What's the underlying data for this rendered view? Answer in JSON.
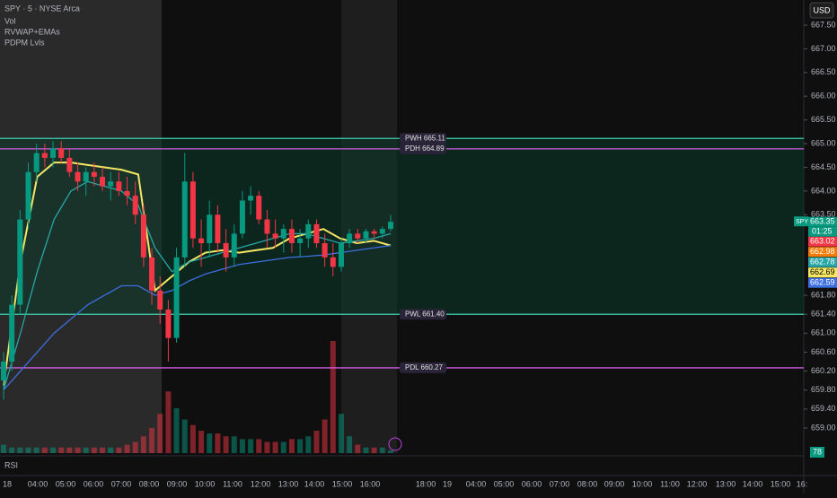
{
  "header": {
    "symbol": "SPY · 5 · NYSE Arca",
    "indicators": [
      "Vol",
      "RVWAP+EMAs",
      "PDPM Lvls"
    ],
    "currency": "USD",
    "rsi_label": "RSI",
    "rsi_value": 78
  },
  "chart_data": {
    "type": "candlestick",
    "ylim": [
      658.47,
      668.03
    ],
    "yticks": [
      {
        "value": 667.5,
        "label": "667.50"
      },
      {
        "value": 667,
        "label": "667.00"
      },
      {
        "value": 666.5,
        "label": "666.50"
      },
      {
        "value": 666,
        "label": "666.00"
      },
      {
        "value": 665.5,
        "label": "665.50"
      },
      {
        "value": 665,
        "label": "665.00"
      },
      {
        "value": 664.5,
        "label": "664.50"
      },
      {
        "value": 664,
        "label": "664.00"
      },
      {
        "value": 663.5,
        "label": "663.50"
      },
      {
        "value": 661.8,
        "label": "661.80"
      },
      {
        "value": 661.4,
        "label": "661.40"
      },
      {
        "value": 661,
        "label": "661.00"
      },
      {
        "value": 660.6,
        "label": "660.60"
      },
      {
        "value": 660.2,
        "label": "660.20"
      },
      {
        "value": 659.8,
        "label": "659.80"
      },
      {
        "value": 659.4,
        "label": "659.40"
      },
      {
        "value": 659,
        "label": "659.00"
      }
    ],
    "time_labels": [
      "18",
      "04:00",
      "05:00",
      "06:00",
      "07:00",
      "08:00",
      "09:00",
      "10:00",
      "11:00",
      "12:00",
      "13:00",
      "14:00",
      "15:00",
      "16:00",
      "18:00",
      "19",
      "04:00",
      "05:00",
      "06:00",
      "07:00",
      "08:00",
      "09:00",
      "10:00",
      "11:00",
      "12:00",
      "13:00",
      "14:00",
      "15:00",
      "16:"
    ],
    "open": [
      660.0,
      660.4,
      661.6,
      663.4,
      664.4,
      664.8,
      664.7,
      664.9,
      664.7,
      664.4,
      664.2,
      664.4,
      664.3,
      664.1,
      664.2,
      664.0,
      663.9,
      663.5,
      662.6,
      661.9,
      661.5,
      660.9,
      662.6,
      664.2,
      663.0,
      662.9,
      663.5,
      662.9,
      662.6,
      663.1,
      663.8,
      663.9,
      663.4,
      663.1,
      663.0,
      663.2,
      662.9,
      663.0,
      663.3,
      662.9,
      662.6,
      662.4,
      662.9,
      663.1,
      663.0,
      663.15,
      663.1,
      663.2
    ],
    "high": [
      660.6,
      661.8,
      663.6,
      664.6,
      665.0,
      665.0,
      665.05,
      665.05,
      664.9,
      664.6,
      664.5,
      664.6,
      664.5,
      664.4,
      664.4,
      664.3,
      664.2,
      663.7,
      662.8,
      662.2,
      661.7,
      662.8,
      664.8,
      664.4,
      663.4,
      663.8,
      663.7,
      663.2,
      663.3,
      664.0,
      664.1,
      664.0,
      663.6,
      663.4,
      663.3,
      663.4,
      663.2,
      663.4,
      663.4,
      663.1,
      662.9,
      663.0,
      663.2,
      663.2,
      663.2,
      663.2,
      663.25,
      663.5
    ],
    "low": [
      659.6,
      660.2,
      661.4,
      663.2,
      664.2,
      664.5,
      664.5,
      664.6,
      664.3,
      664.0,
      663.9,
      664.1,
      664.0,
      663.8,
      663.9,
      663.7,
      663.3,
      662.4,
      661.6,
      661.2,
      660.4,
      660.8,
      662.4,
      662.8,
      662.4,
      662.6,
      662.7,
      662.3,
      662.4,
      663.0,
      663.5,
      663.3,
      662.8,
      662.8,
      662.7,
      662.7,
      662.6,
      662.8,
      662.8,
      662.4,
      662.2,
      662.3,
      662.8,
      662.9,
      662.9,
      663.0,
      663.0,
      663.15
    ],
    "close": [
      660.4,
      661.6,
      663.4,
      664.4,
      664.8,
      664.7,
      664.9,
      664.7,
      664.4,
      664.2,
      664.4,
      664.3,
      664.1,
      664.2,
      664.0,
      663.9,
      663.5,
      662.6,
      661.9,
      661.5,
      660.9,
      662.6,
      664.2,
      663.0,
      662.9,
      663.5,
      662.9,
      662.6,
      663.1,
      663.8,
      663.9,
      663.4,
      663.1,
      663.0,
      663.2,
      662.9,
      663.0,
      663.3,
      662.9,
      662.6,
      662.4,
      662.9,
      663.1,
      663.0,
      663.15,
      663.1,
      663.2,
      663.35
    ],
    "volume": [
      3,
      2,
      2,
      2,
      2,
      2,
      2,
      2,
      2,
      2,
      2,
      2,
      2,
      2,
      2,
      3,
      4,
      6,
      9,
      14,
      22,
      16,
      12,
      10,
      8,
      7,
      7,
      6,
      6,
      5,
      5,
      5,
      4,
      4,
      4,
      5,
      5,
      6,
      8,
      12,
      40,
      14,
      6,
      3,
      2,
      2,
      2,
      1
    ],
    "up_color": "#089981",
    "down_color": "#f23645",
    "series": [
      {
        "color": "#f5e663",
        "values": [
          659.9,
          662.5,
          664.3,
          664.6,
          664.6,
          664.55,
          664.5,
          664.45,
          664.35,
          661.9,
          662.2,
          662.5,
          662.7,
          662.75,
          662.7,
          662.75,
          662.8,
          663.0,
          663.1,
          663.2,
          663.0,
          662.9,
          662.95,
          662.85
        ]
      },
      {
        "color": "#26a6a6",
        "values": [
          659.8,
          661.0,
          662.3,
          663.4,
          664.0,
          664.2,
          664.1,
          664.0,
          663.7,
          662.8,
          662.3,
          662.5,
          662.6,
          662.7,
          662.8,
          662.9,
          663.0,
          663.1,
          663.1,
          663.0,
          662.9,
          662.95,
          663.0,
          663.1
        ]
      },
      {
        "color": "#3d6fe0",
        "values": [
          659.8,
          660.2,
          660.6,
          661.0,
          661.3,
          661.6,
          661.8,
          662.0,
          662.0,
          661.8,
          661.9,
          662.1,
          662.25,
          662.35,
          662.45,
          662.5,
          662.55,
          662.6,
          662.62,
          662.65,
          662.7,
          662.75,
          662.8,
          662.85
        ]
      }
    ],
    "levels": [
      {
        "label": "PWH 665.11",
        "value": 665.11,
        "color": "#3fd1b0"
      },
      {
        "label": "PDH 664.89",
        "value": 664.89,
        "color": "#d05ce3"
      },
      {
        "label": "PWL 661.40",
        "value": 661.4,
        "color": "#3fd1b0"
      },
      {
        "label": "PDL 660.27",
        "value": 660.27,
        "color": "#d05ce3"
      }
    ],
    "symbol_tag": "SPY",
    "countdown": "01:25",
    "price_tags": [
      {
        "value": 663.35,
        "label": "663.35",
        "color": "#089981"
      },
      {
        "value": 663.02,
        "label": "663.02",
        "color": "#f23645"
      },
      {
        "value": 662.98,
        "label": "662.98",
        "color": "#f57c00"
      },
      {
        "value": 662.78,
        "label": "662.78",
        "color": "#26a6a6"
      },
      {
        "value": 662.69,
        "label": "662.69",
        "color": "#f5e663"
      },
      {
        "value": 662.59,
        "label": "662.59",
        "color": "#3d6fe0"
      }
    ]
  }
}
